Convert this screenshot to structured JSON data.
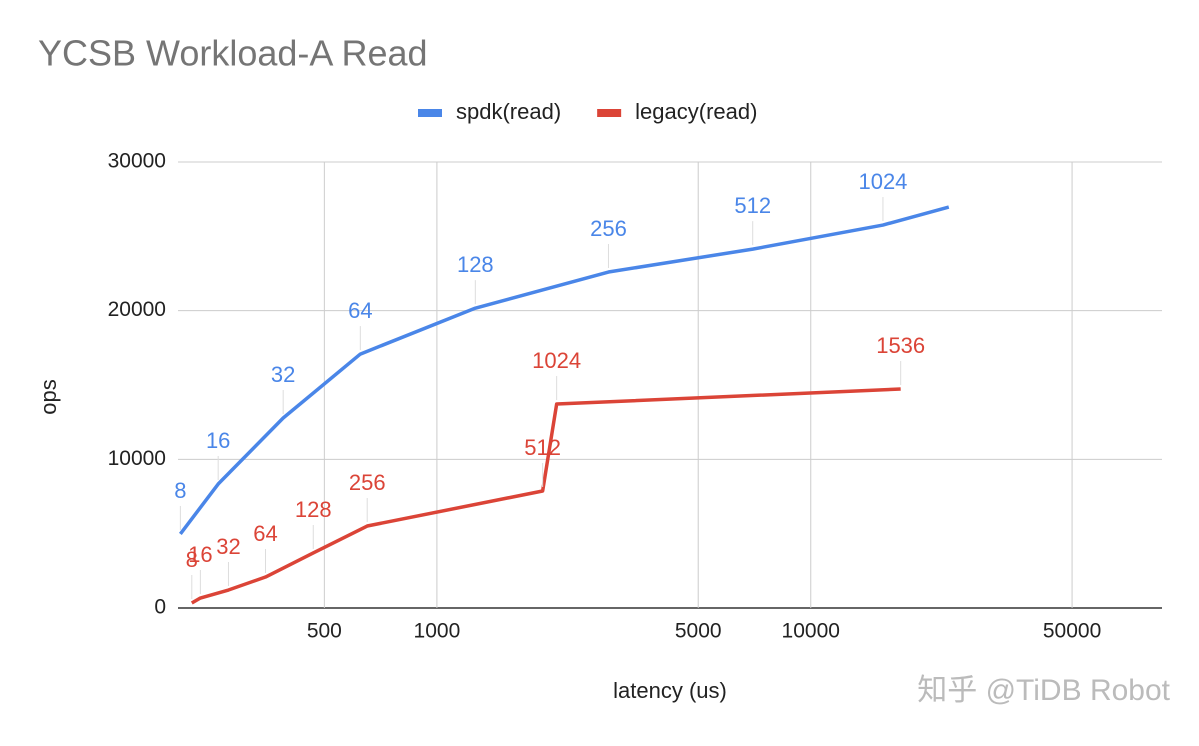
{
  "chart_data": {
    "type": "line",
    "title": "YCSB Workload-A Read",
    "x_label": "latency (us)",
    "y_label": "ops",
    "xscale": "log",
    "grid": true,
    "legend": "top",
    "xlim": [
      203,
      87000
    ],
    "ylim": [
      0,
      30000
    ],
    "xticks": [
      500,
      1000,
      5000,
      10000,
      50000
    ],
    "yticks": [
      0,
      10000,
      20000,
      30000
    ],
    "series": [
      {
        "name": "spdk(read)",
        "color": "#4a86e8",
        "x": [
          206,
          260,
          388,
          624,
          1267,
          2877,
          6995,
          15600,
          23400
        ],
        "values": [
          4980,
          8340,
          12780,
          17080,
          20170,
          22600,
          24140,
          25760,
          26970
        ],
        "labels": [
          "8",
          "16",
          "32",
          "64",
          "128",
          "256",
          "512",
          "1024",
          null
        ]
      },
      {
        "name": "legacy(read)",
        "color": "#db4437",
        "x": [
          221,
          233,
          277,
          348,
          467,
          651,
          1918,
          2091,
          17400
        ],
        "values": [
          336,
          672,
          1210,
          2085,
          3700,
          5515,
          7870,
          13720,
          14730
        ],
        "labels": [
          "8",
          "16",
          "32",
          "64",
          "128",
          "256",
          "512",
          "1024",
          "1536"
        ]
      }
    ],
    "watermark": "知乎 @TiDB Robot"
  }
}
